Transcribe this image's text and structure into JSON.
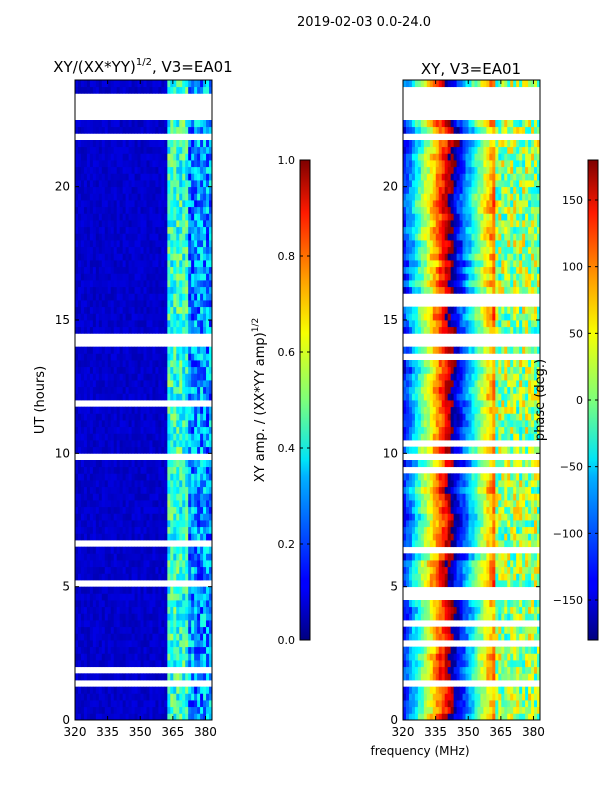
{
  "figure": {
    "suptitle": "2019-02-03 0.0-24.0",
    "xlabel": "frequency (MHz)"
  },
  "chart_data": [
    {
      "type": "heatmap",
      "title": "XY/(XX*YY)",
      "title_exponent": "1/2",
      "title_suffix": ", V3=EA01",
      "xlabel": "",
      "ylabel": "UT (hours)",
      "xlim": [
        320,
        383
      ],
      "ylim": [
        0,
        24
      ],
      "xticks": [
        320,
        335,
        350,
        365,
        380
      ],
      "yticks": [
        0,
        5,
        10,
        15,
        20
      ],
      "colorbar": {
        "label": "XY amp. / (XX*YY amp)",
        "label_exponent": "1/2",
        "range": [
          0.0,
          1.0
        ],
        "ticks": [
          "0.0",
          "0.2",
          "0.4",
          "0.6",
          "0.8",
          "1.0"
        ],
        "colormap": "jet"
      },
      "features": {
        "background_value": 0.05,
        "band_rfi_MHz": [
          362,
          372
        ],
        "band_rfi_value_range": [
          0.3,
          0.55
        ],
        "gap_rows_hours": [
          [
            22.6,
            23.5
          ],
          [
            21.65,
            22.0
          ],
          [
            14.1,
            14.55
          ],
          [
            9.85,
            10.1
          ],
          [
            1.25,
            1.45
          ]
        ]
      }
    },
    {
      "type": "heatmap",
      "title": "XY, V3=EA01",
      "xlabel": "frequency (MHz)",
      "ylabel": "",
      "xlim": [
        320,
        383
      ],
      "ylim": [
        0,
        24
      ],
      "xticks": [
        320,
        335,
        350,
        365,
        380
      ],
      "yticks": [
        0,
        5,
        10,
        15,
        20
      ],
      "colorbar": {
        "label": "phase (deg.)",
        "range": [
          -180,
          180
        ],
        "ticks": [
          "−150",
          "−100",
          "−50",
          "0",
          "50",
          "100",
          "150"
        ],
        "tick_values": [
          -150,
          -100,
          -50,
          0,
          50,
          100,
          150
        ],
        "colormap": "jet"
      },
      "features": {
        "phase_wraps_across_band": true,
        "gap_rows_hours": [
          [
            22.6,
            23.5
          ],
          [
            21.65,
            22.0
          ],
          [
            14.1,
            14.55
          ],
          [
            9.85,
            10.1
          ],
          [
            1.25,
            1.45
          ]
        ]
      }
    }
  ]
}
